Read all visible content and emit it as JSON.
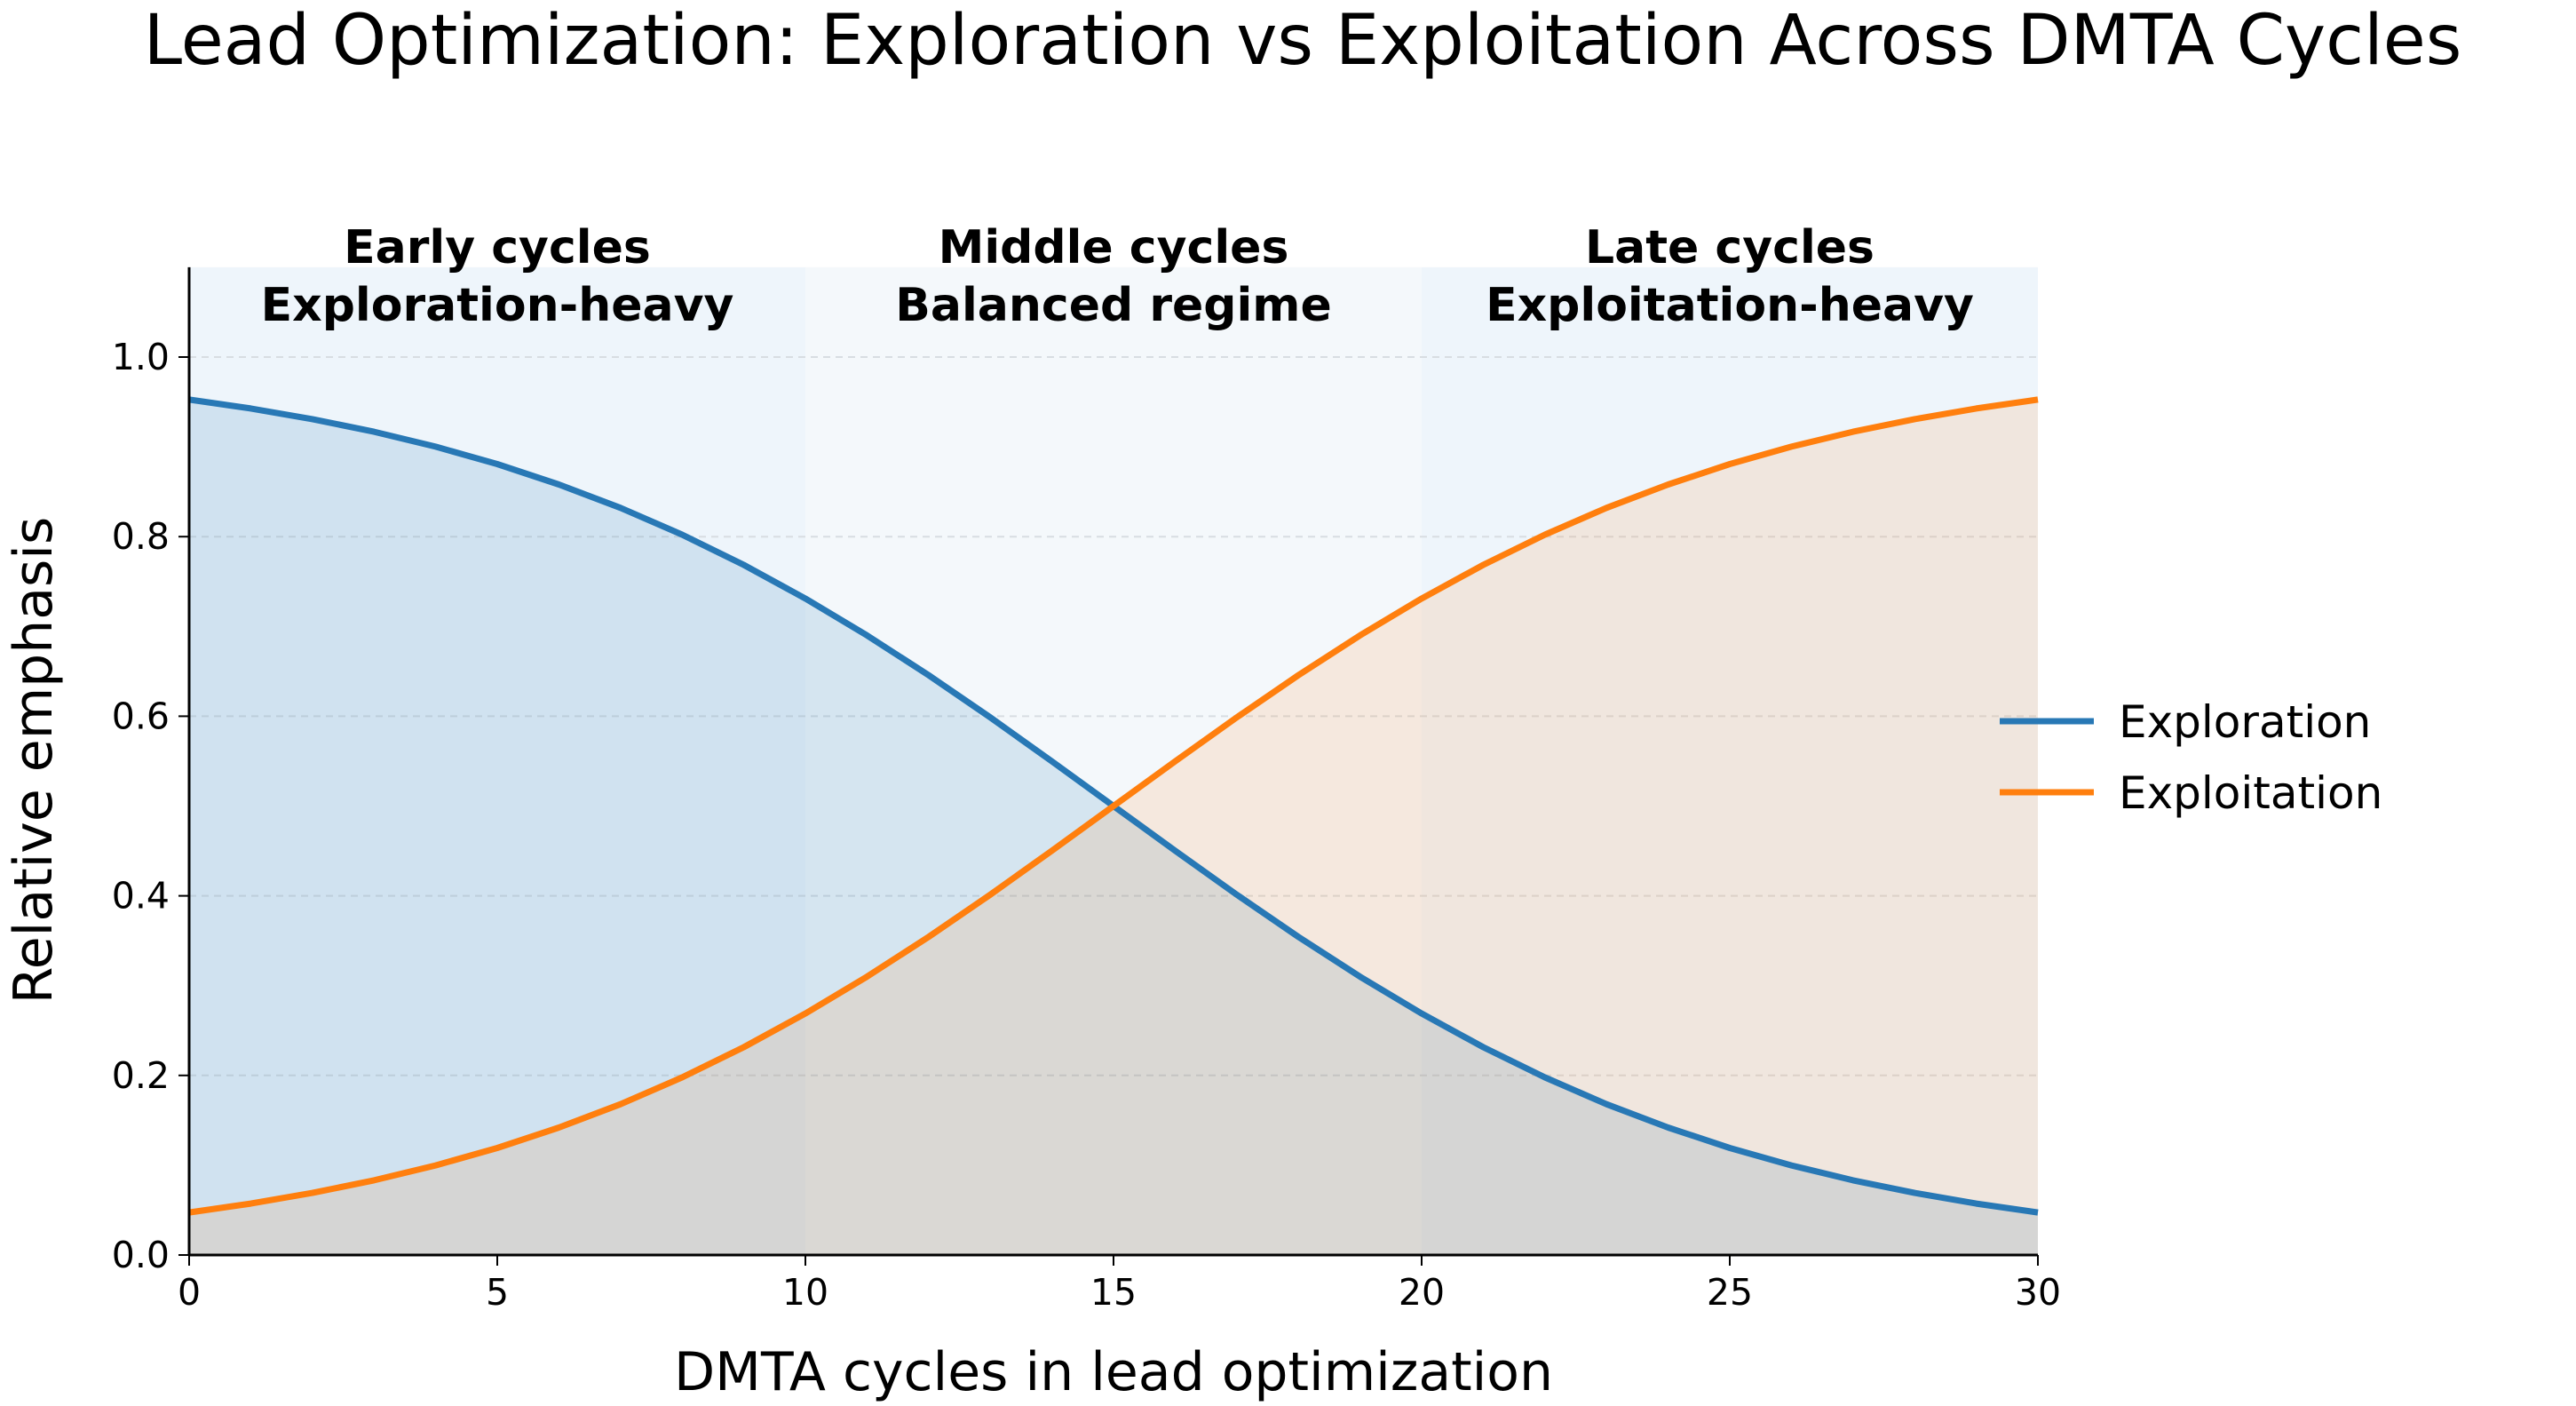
{
  "chart_data": {
    "type": "line",
    "title": "Lead Optimization: Exploration vs Exploitation Across DMTA Cycles",
    "xlabel": "DMTA cycles in lead optimization",
    "ylabel": "Relative emphasis",
    "xlim": [
      0,
      30
    ],
    "ylim": [
      0,
      1.1
    ],
    "x_ticks": [
      "0",
      "5",
      "10",
      "15",
      "20",
      "25",
      "30"
    ],
    "y_ticks": [
      "0.0",
      "0.2",
      "0.4",
      "0.6",
      "0.8",
      "1.0"
    ],
    "grid": "horizontal dashed",
    "legend_position": "right",
    "x": [
      0,
      1,
      2,
      3,
      4,
      5,
      6,
      7,
      8,
      9,
      10,
      11,
      12,
      13,
      14,
      15,
      16,
      17,
      18,
      19,
      20,
      21,
      22,
      23,
      24,
      25,
      26,
      27,
      28,
      29,
      30
    ],
    "series": [
      {
        "name": "Exploration",
        "color": "#2878b5",
        "values": [
          0.9526,
          0.9427,
          0.9309,
          0.9168,
          0.9002,
          0.8808,
          0.8581,
          0.832,
          0.8022,
          0.7685,
          0.7311,
          0.69,
          0.6457,
          0.5987,
          0.5498,
          0.5,
          0.4502,
          0.4013,
          0.3543,
          0.31,
          0.2689,
          0.2315,
          0.1978,
          0.168,
          0.1419,
          0.1192,
          0.0998,
          0.0832,
          0.0691,
          0.0573,
          0.0474
        ]
      },
      {
        "name": "Exploitation",
        "color": "#ff7f0e",
        "values": [
          0.0474,
          0.0573,
          0.0691,
          0.0832,
          0.0998,
          0.1192,
          0.1419,
          0.168,
          0.1978,
          0.2315,
          0.2689,
          0.31,
          0.3543,
          0.4013,
          0.4502,
          0.5,
          0.5498,
          0.5987,
          0.6457,
          0.69,
          0.7311,
          0.7685,
          0.8022,
          0.832,
          0.8581,
          0.8808,
          0.9002,
          0.9168,
          0.9309,
          0.9427,
          0.9526
        ]
      }
    ],
    "regions": [
      {
        "range": [
          0,
          10
        ],
        "line1": "Early cycles",
        "line2": "Exploration-heavy",
        "color": "#eef5fb"
      },
      {
        "range": [
          10,
          20
        ],
        "line1": "Middle cycles",
        "line2": "Balanced regime",
        "color": "#f4f8fb"
      },
      {
        "range": [
          20,
          30
        ],
        "line1": "Late cycles",
        "line2": "Exploitation-heavy",
        "color": "#eef5fb"
      }
    ]
  }
}
